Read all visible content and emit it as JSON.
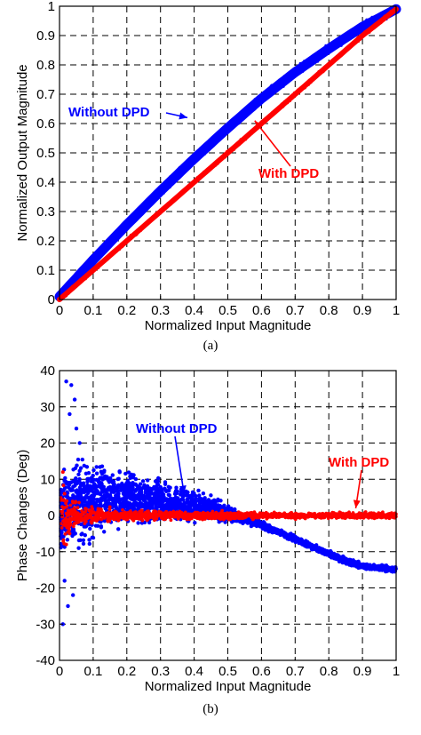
{
  "chart_data": [
    {
      "type": "scatter",
      "panel": "(a)",
      "xlabel": "Normalized Input Magnitude",
      "ylabel": "Normalized Output Magnitude",
      "xlim": [
        0,
        1
      ],
      "ylim": [
        0,
        1
      ],
      "xticks": [
        "0",
        "0.1",
        "0.2",
        "0.3",
        "0.4",
        "0.5",
        "0.6",
        "0.7",
        "0.8",
        "0.9",
        "1"
      ],
      "yticks": [
        "0",
        "0.1",
        "0.2",
        "0.3",
        "0.4",
        "0.5",
        "0.6",
        "0.7",
        "0.8",
        "0.9",
        "1"
      ],
      "grid": true,
      "series": [
        {
          "name": "Without DPD",
          "color": "#0000ff",
          "x": [
            0,
            0.1,
            0.2,
            0.3,
            0.4,
            0.5,
            0.6,
            0.7,
            0.8,
            0.9,
            1.0
          ],
          "y": [
            0.01,
            0.135,
            0.255,
            0.37,
            0.48,
            0.585,
            0.685,
            0.775,
            0.855,
            0.93,
            0.99
          ]
        },
        {
          "name": "With DPD",
          "color": "#ff0000",
          "x": [
            0,
            0.1,
            0.2,
            0.3,
            0.4,
            0.5,
            0.6,
            0.7,
            0.8,
            0.9,
            1.0
          ],
          "y": [
            0.0,
            0.1,
            0.2,
            0.3,
            0.4,
            0.5,
            0.6,
            0.7,
            0.8,
            0.9,
            0.99
          ]
        }
      ],
      "annotations": [
        {
          "text": "Without DPD",
          "color": "#0000ff",
          "points_to": [
            0.38,
            0.62
          ]
        },
        {
          "text": "With DPD",
          "color": "#ff0000",
          "points_to": [
            0.58,
            0.61
          ]
        }
      ]
    },
    {
      "type": "scatter",
      "panel": "(b)",
      "xlabel": "Normalized Input Magnitude",
      "ylabel": "Phase Changes (Deg)",
      "xlim": [
        0,
        1
      ],
      "ylim": [
        -40,
        40
      ],
      "xticks": [
        "0",
        "0.1",
        "0.2",
        "0.3",
        "0.4",
        "0.5",
        "0.6",
        "0.7",
        "0.8",
        "0.9",
        "1"
      ],
      "yticks": [
        "-40",
        "-30",
        "-20",
        "-10",
        "0",
        "10",
        "20",
        "30",
        "40"
      ],
      "grid": true,
      "series": [
        {
          "name": "Without DPD",
          "color": "#0000ff",
          "x": [
            0.0,
            0.05,
            0.1,
            0.15,
            0.2,
            0.25,
            0.3,
            0.35,
            0.4,
            0.45,
            0.5,
            0.55,
            0.6,
            0.65,
            0.7,
            0.75,
            0.8,
            0.85,
            0.9,
            0.95,
            1.0
          ],
          "y_center": [
            0,
            3,
            4,
            4.5,
            4.5,
            4,
            3.5,
            3,
            2.5,
            2,
            0.5,
            -1,
            -2.5,
            -4.5,
            -6.5,
            -8.5,
            -10.5,
            -12.5,
            -14,
            -14.5,
            -15
          ],
          "y_spread": [
            10,
            12,
            10,
            8,
            7,
            6,
            5.5,
            4.5,
            4,
            3,
            2,
            1.2,
            1,
            0.8,
            0.8,
            0.8,
            0.8,
            0.8,
            0.8,
            0.8,
            0.8
          ]
        },
        {
          "name": "With DPD",
          "color": "#ff0000",
          "x": [
            0.0,
            0.05,
            0.1,
            0.2,
            0.3,
            0.4,
            0.5,
            0.6,
            0.7,
            0.8,
            0.9,
            1.0
          ],
          "y_center": [
            0,
            0,
            0,
            0,
            0,
            0,
            0,
            0,
            0,
            0,
            0,
            0
          ],
          "y_spread": [
            8,
            3,
            2,
            1.5,
            1.2,
            1,
            1,
            0.8,
            0.8,
            0.8,
            0.8,
            0.8
          ]
        }
      ],
      "annotations": [
        {
          "text": "Without DPD",
          "color": "#0000ff",
          "points_to": [
            0.37,
            6
          ]
        },
        {
          "text": "With DPD",
          "color": "#ff0000",
          "points_to": [
            0.88,
            2
          ]
        }
      ]
    }
  ]
}
